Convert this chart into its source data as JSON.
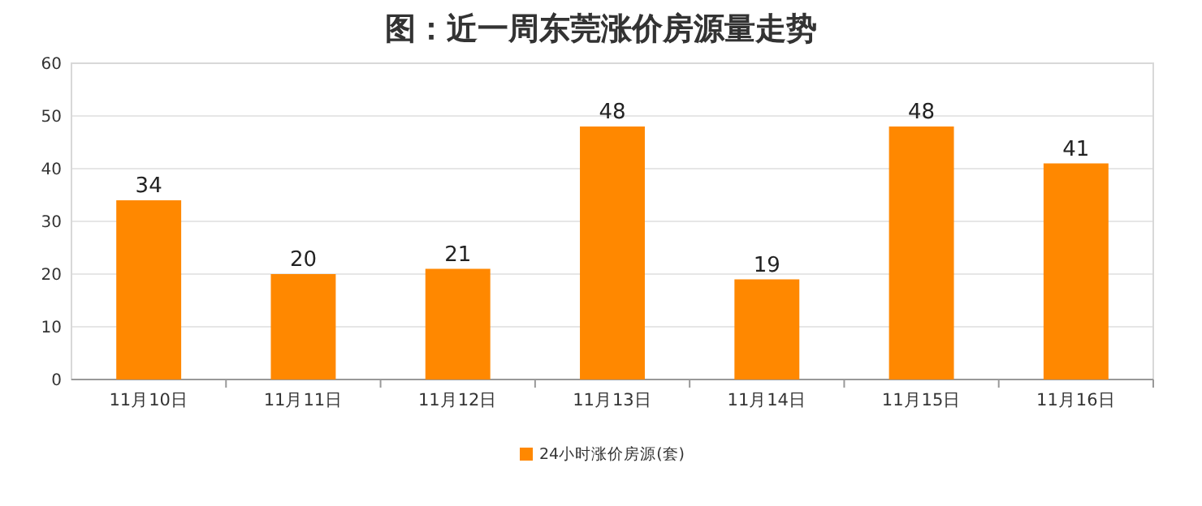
{
  "chart_data": {
    "type": "bar",
    "title": "图：近一周东莞涨价房源量走势",
    "categories": [
      "11月10日",
      "11月11日",
      "11月12日",
      "11月13日",
      "11月14日",
      "11月15日",
      "11月16日"
    ],
    "series": [
      {
        "name": "24小时涨价房源(套)",
        "color": "#ff8800",
        "values": [
          34,
          20,
          21,
          48,
          19,
          48,
          41
        ]
      }
    ],
    "ylim": [
      0,
      60
    ],
    "yticks": [
      0,
      10,
      20,
      30,
      40,
      50,
      60
    ],
    "grid": "y",
    "legend": "bottom",
    "data_labels": true
  }
}
